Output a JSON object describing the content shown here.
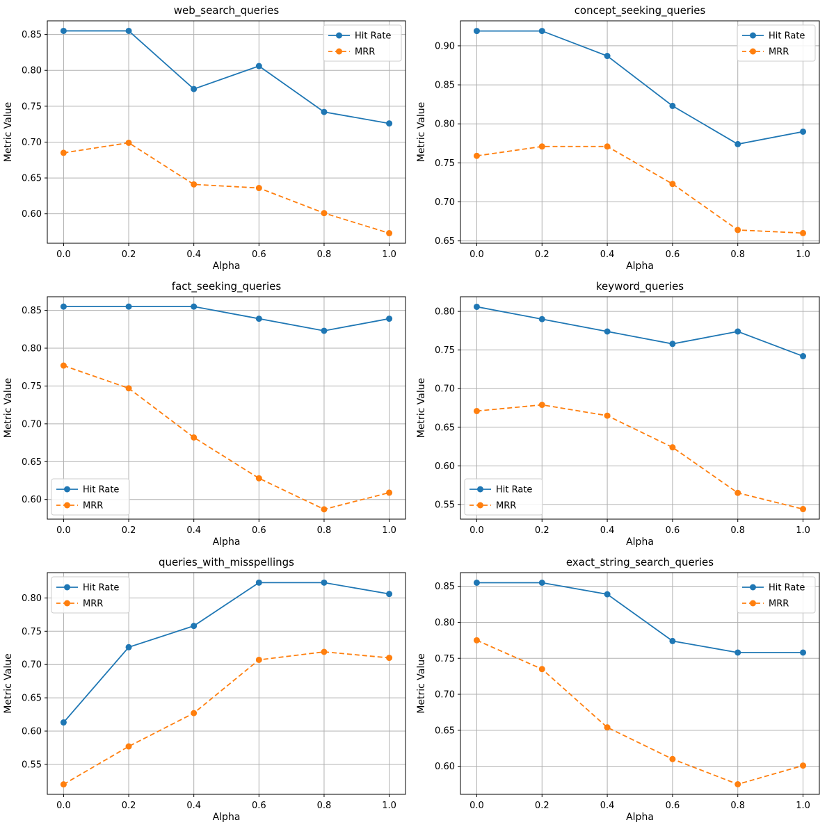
{
  "figure": {
    "background": "#ffffff",
    "xlabel": "Alpha",
    "ylabel": "Metric Value",
    "x_tick_labels": [
      "0.0",
      "0.2",
      "0.4",
      "0.6",
      "0.8",
      "1.0"
    ],
    "legend_labels": [
      "Hit Rate",
      "MRR"
    ],
    "colors": {
      "hit_rate": "#1f77b4",
      "mrr": "#ff7f0e",
      "grid": "#b0b0b0",
      "frame": "#000000",
      "legend_border": "#cccccc",
      "legend_fill": "#ffffff"
    }
  },
  "chart_data": [
    {
      "type": "line",
      "title": "web_search_queries",
      "xlabel": "Alpha",
      "ylabel": "Metric Value",
      "grid": true,
      "legend_position": "upper right",
      "x": [
        0.0,
        0.2,
        0.4,
        0.6,
        0.8,
        1.0
      ],
      "xlim": [
        -0.05,
        1.05
      ],
      "ylim": [
        0.559,
        0.869
      ],
      "ytick_values": [
        0.6,
        0.65,
        0.7,
        0.75,
        0.8,
        0.85
      ],
      "ytick_labels": [
        "0.60",
        "0.65",
        "0.70",
        "0.75",
        "0.80",
        "0.85"
      ],
      "series": [
        {
          "name": "Hit Rate",
          "color": "#1f77b4",
          "line_style": "solid",
          "marker": "circle",
          "values": [
            0.855,
            0.855,
            0.774,
            0.806,
            0.742,
            0.726
          ]
        },
        {
          "name": "MRR",
          "color": "#ff7f0e",
          "line_style": "dashed",
          "marker": "circle",
          "values": [
            0.685,
            0.699,
            0.641,
            0.636,
            0.601,
            0.573
          ]
        }
      ]
    },
    {
      "type": "line",
      "title": "concept_seeking_queries",
      "xlabel": "Alpha",
      "ylabel": "Metric Value",
      "grid": true,
      "legend_position": "upper right",
      "x": [
        0.0,
        0.2,
        0.4,
        0.6,
        0.8,
        1.0
      ],
      "xlim": [
        -0.05,
        1.05
      ],
      "ylim": [
        0.647,
        0.932
      ],
      "ytick_values": [
        0.65,
        0.7,
        0.75,
        0.8,
        0.85,
        0.9
      ],
      "ytick_labels": [
        "0.65",
        "0.70",
        "0.75",
        "0.80",
        "0.85",
        "0.90"
      ],
      "series": [
        {
          "name": "Hit Rate",
          "color": "#1f77b4",
          "line_style": "solid",
          "marker": "circle",
          "values": [
            0.919,
            0.919,
            0.887,
            0.823,
            0.774,
            0.79
          ]
        },
        {
          "name": "MRR",
          "color": "#ff7f0e",
          "line_style": "dashed",
          "marker": "circle",
          "values": [
            0.759,
            0.771,
            0.771,
            0.723,
            0.664,
            0.66
          ]
        }
      ]
    },
    {
      "type": "line",
      "title": "fact_seeking_queries",
      "xlabel": "Alpha",
      "ylabel": "Metric Value",
      "grid": true,
      "legend_position": "lower left",
      "x": [
        0.0,
        0.2,
        0.4,
        0.6,
        0.8,
        1.0
      ],
      "xlim": [
        -0.05,
        1.05
      ],
      "ylim": [
        0.574,
        0.868
      ],
      "ytick_values": [
        0.6,
        0.65,
        0.7,
        0.75,
        0.8,
        0.85
      ],
      "ytick_labels": [
        "0.60",
        "0.65",
        "0.70",
        "0.75",
        "0.80",
        "0.85"
      ],
      "series": [
        {
          "name": "Hit Rate",
          "color": "#1f77b4",
          "line_style": "solid",
          "marker": "circle",
          "values": [
            0.855,
            0.855,
            0.855,
            0.839,
            0.823,
            0.839
          ]
        },
        {
          "name": "MRR",
          "color": "#ff7f0e",
          "line_style": "dashed",
          "marker": "circle",
          "values": [
            0.777,
            0.747,
            0.682,
            0.628,
            0.587,
            0.609
          ]
        }
      ]
    },
    {
      "type": "line",
      "title": "keyword_queries",
      "xlabel": "Alpha",
      "ylabel": "Metric Value",
      "grid": true,
      "legend_position": "lower left",
      "x": [
        0.0,
        0.2,
        0.4,
        0.6,
        0.8,
        1.0
      ],
      "xlim": [
        -0.05,
        1.05
      ],
      "ylim": [
        0.531,
        0.819
      ],
      "ytick_values": [
        0.55,
        0.6,
        0.65,
        0.7,
        0.75,
        0.8
      ],
      "ytick_labels": [
        "0.55",
        "0.60",
        "0.65",
        "0.70",
        "0.75",
        "0.80"
      ],
      "series": [
        {
          "name": "Hit Rate",
          "color": "#1f77b4",
          "line_style": "solid",
          "marker": "circle",
          "values": [
            0.806,
            0.79,
            0.774,
            0.758,
            0.774,
            0.742
          ]
        },
        {
          "name": "MRR",
          "color": "#ff7f0e",
          "line_style": "dashed",
          "marker": "circle",
          "values": [
            0.671,
            0.679,
            0.665,
            0.624,
            0.565,
            0.544
          ]
        }
      ]
    },
    {
      "type": "line",
      "title": "queries_with_misspellings",
      "xlabel": "Alpha",
      "ylabel": "Metric Value",
      "grid": true,
      "legend_position": "upper left",
      "x": [
        0.0,
        0.2,
        0.4,
        0.6,
        0.8,
        1.0
      ],
      "xlim": [
        -0.05,
        1.05
      ],
      "ylim": [
        0.505,
        0.838
      ],
      "ytick_values": [
        0.55,
        0.6,
        0.65,
        0.7,
        0.75,
        0.8
      ],
      "ytick_labels": [
        "0.55",
        "0.60",
        "0.65",
        "0.70",
        "0.75",
        "0.80"
      ],
      "series": [
        {
          "name": "Hit Rate",
          "color": "#1f77b4",
          "line_style": "solid",
          "marker": "circle",
          "values": [
            0.613,
            0.726,
            0.758,
            0.823,
            0.823,
            0.806
          ]
        },
        {
          "name": "MRR",
          "color": "#ff7f0e",
          "line_style": "dashed",
          "marker": "circle",
          "values": [
            0.52,
            0.577,
            0.627,
            0.707,
            0.719,
            0.71
          ]
        }
      ]
    },
    {
      "type": "line",
      "title": "exact_string_search_queries",
      "xlabel": "Alpha",
      "ylabel": "Metric Value",
      "grid": true,
      "legend_position": "upper right",
      "x": [
        0.0,
        0.2,
        0.4,
        0.6,
        0.8,
        1.0
      ],
      "xlim": [
        -0.05,
        1.05
      ],
      "ylim": [
        0.561,
        0.869
      ],
      "ytick_values": [
        0.6,
        0.65,
        0.7,
        0.75,
        0.8,
        0.85
      ],
      "ytick_labels": [
        "0.60",
        "0.65",
        "0.70",
        "0.75",
        "0.80",
        "0.85"
      ],
      "series": [
        {
          "name": "Hit Rate",
          "color": "#1f77b4",
          "line_style": "solid",
          "marker": "circle",
          "values": [
            0.855,
            0.855,
            0.839,
            0.774,
            0.758,
            0.758
          ]
        },
        {
          "name": "MRR",
          "color": "#ff7f0e",
          "line_style": "dashed",
          "marker": "circle",
          "values": [
            0.775,
            0.735,
            0.654,
            0.61,
            0.575,
            0.601
          ]
        }
      ]
    }
  ]
}
